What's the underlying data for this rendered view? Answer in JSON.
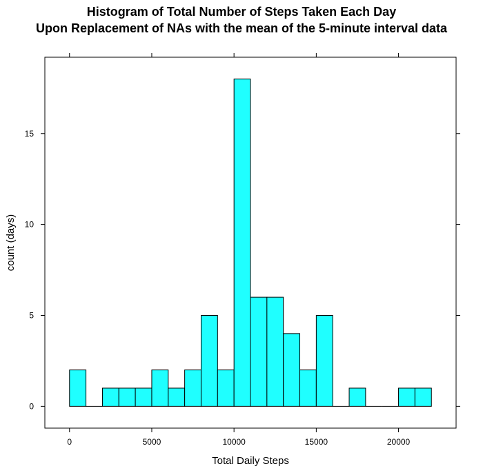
{
  "chart_data": {
    "type": "bar",
    "title_line1": "Histogram of Total Number of Steps Taken Each Day",
    "title_line2": "Upon Replacement of NAs with the mean of the 5-minute interval data",
    "xlabel": "Total Daily Steps",
    "ylabel": "count (days)",
    "bin_width": 1000,
    "bins": [
      {
        "start": 0,
        "end": 1000,
        "count": 2
      },
      {
        "start": 1000,
        "end": 2000,
        "count": 0
      },
      {
        "start": 2000,
        "end": 3000,
        "count": 1
      },
      {
        "start": 3000,
        "end": 4000,
        "count": 1
      },
      {
        "start": 4000,
        "end": 5000,
        "count": 1
      },
      {
        "start": 5000,
        "end": 6000,
        "count": 2
      },
      {
        "start": 6000,
        "end": 7000,
        "count": 1
      },
      {
        "start": 7000,
        "end": 8000,
        "count": 2
      },
      {
        "start": 8000,
        "end": 9000,
        "count": 5
      },
      {
        "start": 9000,
        "end": 10000,
        "count": 2
      },
      {
        "start": 10000,
        "end": 11000,
        "count": 18
      },
      {
        "start": 11000,
        "end": 12000,
        "count": 6
      },
      {
        "start": 12000,
        "end": 13000,
        "count": 6
      },
      {
        "start": 13000,
        "end": 14000,
        "count": 4
      },
      {
        "start": 14000,
        "end": 15000,
        "count": 2
      },
      {
        "start": 15000,
        "end": 16000,
        "count": 5
      },
      {
        "start": 16000,
        "end": 17000,
        "count": 0
      },
      {
        "start": 17000,
        "end": 18000,
        "count": 1
      },
      {
        "start": 18000,
        "end": 19000,
        "count": 0
      },
      {
        "start": 19000,
        "end": 20000,
        "count": 0
      },
      {
        "start": 20000,
        "end": 21000,
        "count": 1
      },
      {
        "start": 21000,
        "end": 22000,
        "count": 1
      }
    ],
    "xlim": [
      -1500,
      23500
    ],
    "ylim": [
      -1.2,
      19.2
    ],
    "xticks": [
      0,
      5000,
      10000,
      15000,
      20000
    ],
    "xtick_labels": [
      "0",
      "5000",
      "10000",
      "15000",
      "20000"
    ],
    "yticks": [
      0,
      5,
      10,
      15
    ],
    "ytick_labels": [
      "0",
      "5",
      "10",
      "15"
    ],
    "grid": false,
    "bar_fill": "#1fffff",
    "bar_stroke": "#000000"
  }
}
